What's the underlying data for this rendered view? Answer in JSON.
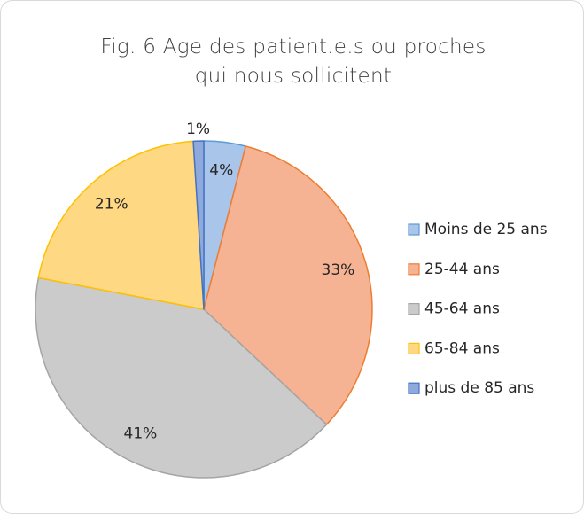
{
  "chart_data": {
    "type": "pie",
    "title": "Fig. 6 Age des patient.e.s ou proches qui nous sollicitent",
    "categories": [
      "Moins de 25 ans",
      "25-44 ans",
      "45-64 ans",
      "65-84 ans",
      "plus de 85 ans"
    ],
    "values": [
      4,
      33,
      41,
      21,
      1
    ],
    "value_labels": [
      "4%",
      "33%",
      "41%",
      "21%",
      "1%"
    ],
    "colors": [
      "#a9c5ea",
      "#f5b394",
      "#cbcbcb",
      "#ffd883",
      "#8ea9dc"
    ],
    "edge_colors": [
      "#5b9bd5",
      "#ed7d31",
      "#a5a5a5",
      "#ffc000",
      "#4472c4"
    ],
    "legend": "right"
  }
}
